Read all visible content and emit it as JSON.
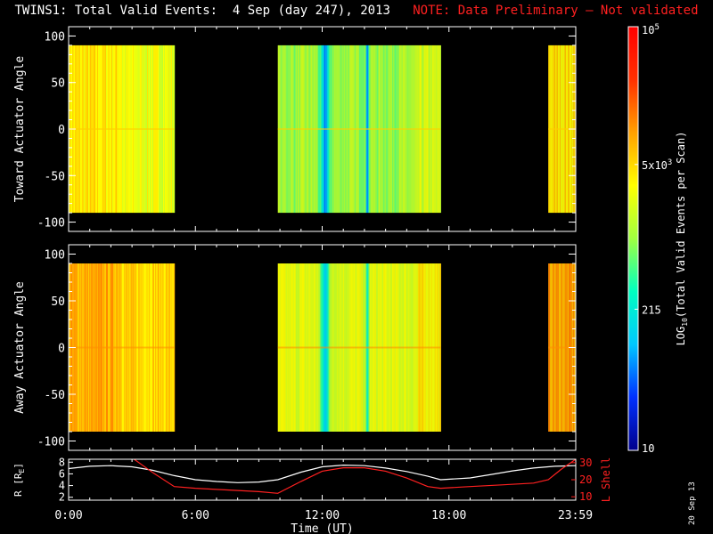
{
  "title": {
    "main": "TWINS1: Total Valid Events:  4 Sep (day 247), 2013",
    "note": "NOTE: Data Preliminary – Not validated"
  },
  "colors": {
    "background": "#000000",
    "note": "#ff2020",
    "r_line": "#ffffff",
    "l_shell": "#ff2020"
  },
  "chart_data": [
    {
      "type": "heatmap",
      "panel": "top",
      "ylabel": "Toward Actuator Angle",
      "ylim": [
        -110,
        110
      ],
      "yticks": [
        100,
        50,
        0,
        -50,
        -100
      ],
      "xlim": [
        0,
        24
      ],
      "x_unit": "hours UT",
      "y_data_range": [
        -90,
        90
      ],
      "data_intervals": [
        [
          0,
          5.0
        ],
        [
          9.9,
          17.6
        ],
        [
          22.7,
          24
        ]
      ],
      "level": "mostly green-yellow, lowest in blue stripes near 12:00 and 14:00"
    },
    {
      "type": "heatmap",
      "panel": "middle",
      "ylabel": "Away Actuator Angle",
      "ylim": [
        -110,
        110
      ],
      "yticks": [
        100,
        50,
        0,
        -50,
        -100
      ],
      "xlim": [
        0,
        24
      ],
      "x_unit": "hours UT",
      "y_data_range": [
        -90,
        90
      ],
      "data_intervals": [
        [
          0,
          5.0
        ],
        [
          9.9,
          17.6
        ],
        [
          22.7,
          24
        ]
      ],
      "level": "mostly yellow-orange, lowest in blue stripes near 12:00 and 14:00"
    },
    {
      "type": "line",
      "panel": "bottom",
      "xlabel": "Time (UT)",
      "xticks": [
        "0:00",
        "6:00",
        "12:00",
        "18:00",
        "23:59"
      ],
      "xtick_hours": [
        0,
        6,
        12,
        18,
        23.98
      ],
      "ylabel_left": "R [R",
      "ylabel_left_sub": "E",
      "ylabel_left_close": "]",
      "yticks_left": [
        2,
        4,
        6,
        8
      ],
      "ylim_left": [
        1.5,
        8.5
      ],
      "ylabel_right": "L Shell",
      "yticks_right": [
        10,
        20,
        30
      ],
      "ylim_right": [
        8,
        32
      ],
      "series": [
        {
          "axis": "left",
          "x": [
            0,
            1,
            2,
            3,
            4,
            5,
            6,
            7,
            8,
            9,
            9.9,
            11,
            12,
            13,
            14,
            15,
            16,
            17,
            17.6,
            19,
            20,
            21,
            22,
            23,
            24
          ],
          "y": [
            6.9,
            7.3,
            7.4,
            7.2,
            6.6,
            5.7,
            5.0,
            4.7,
            4.5,
            4.6,
            5.0,
            6.3,
            7.2,
            7.5,
            7.4,
            7.0,
            6.4,
            5.6,
            5.0,
            5.3,
            5.9,
            6.5,
            7.0,
            7.3,
            7.4
          ]
        },
        {
          "axis": "right",
          "x": [
            3.1,
            4.0,
            5.0,
            6.0,
            7.5,
            9.0,
            9.9,
            11.0,
            12.0,
            13.0,
            14.0,
            15.0,
            16.0,
            17.0,
            17.6,
            19.0,
            20.5,
            22.0,
            22.7,
            23.3,
            24.0
          ],
          "y": [
            32,
            24,
            16,
            15,
            14,
            13,
            12,
            19,
            25,
            27,
            27,
            25,
            21,
            16,
            15,
            16,
            17,
            18,
            20,
            26,
            32
          ]
        }
      ]
    },
    {
      "type": "heatmap",
      "panel": "colorbar",
      "label": "LOG",
      "label_sub": "10",
      "label_rest": "(Total Valid  Events per Scan)",
      "ticks": [
        "10",
        "215",
        "5x10",
        "10"
      ],
      "tick_sups": [
        "",
        "",
        "3",
        "5"
      ],
      "tick_values": [
        10,
        215,
        5000,
        100000
      ],
      "colors": [
        "#00008c",
        "#0030ff",
        "#00c8ff",
        "#00ffc0",
        "#a0ff40",
        "#ffff00",
        "#ffa000",
        "#ff3000",
        "#ff0000"
      ]
    }
  ],
  "footer": {
    "stamp": "20 Sep 13"
  }
}
